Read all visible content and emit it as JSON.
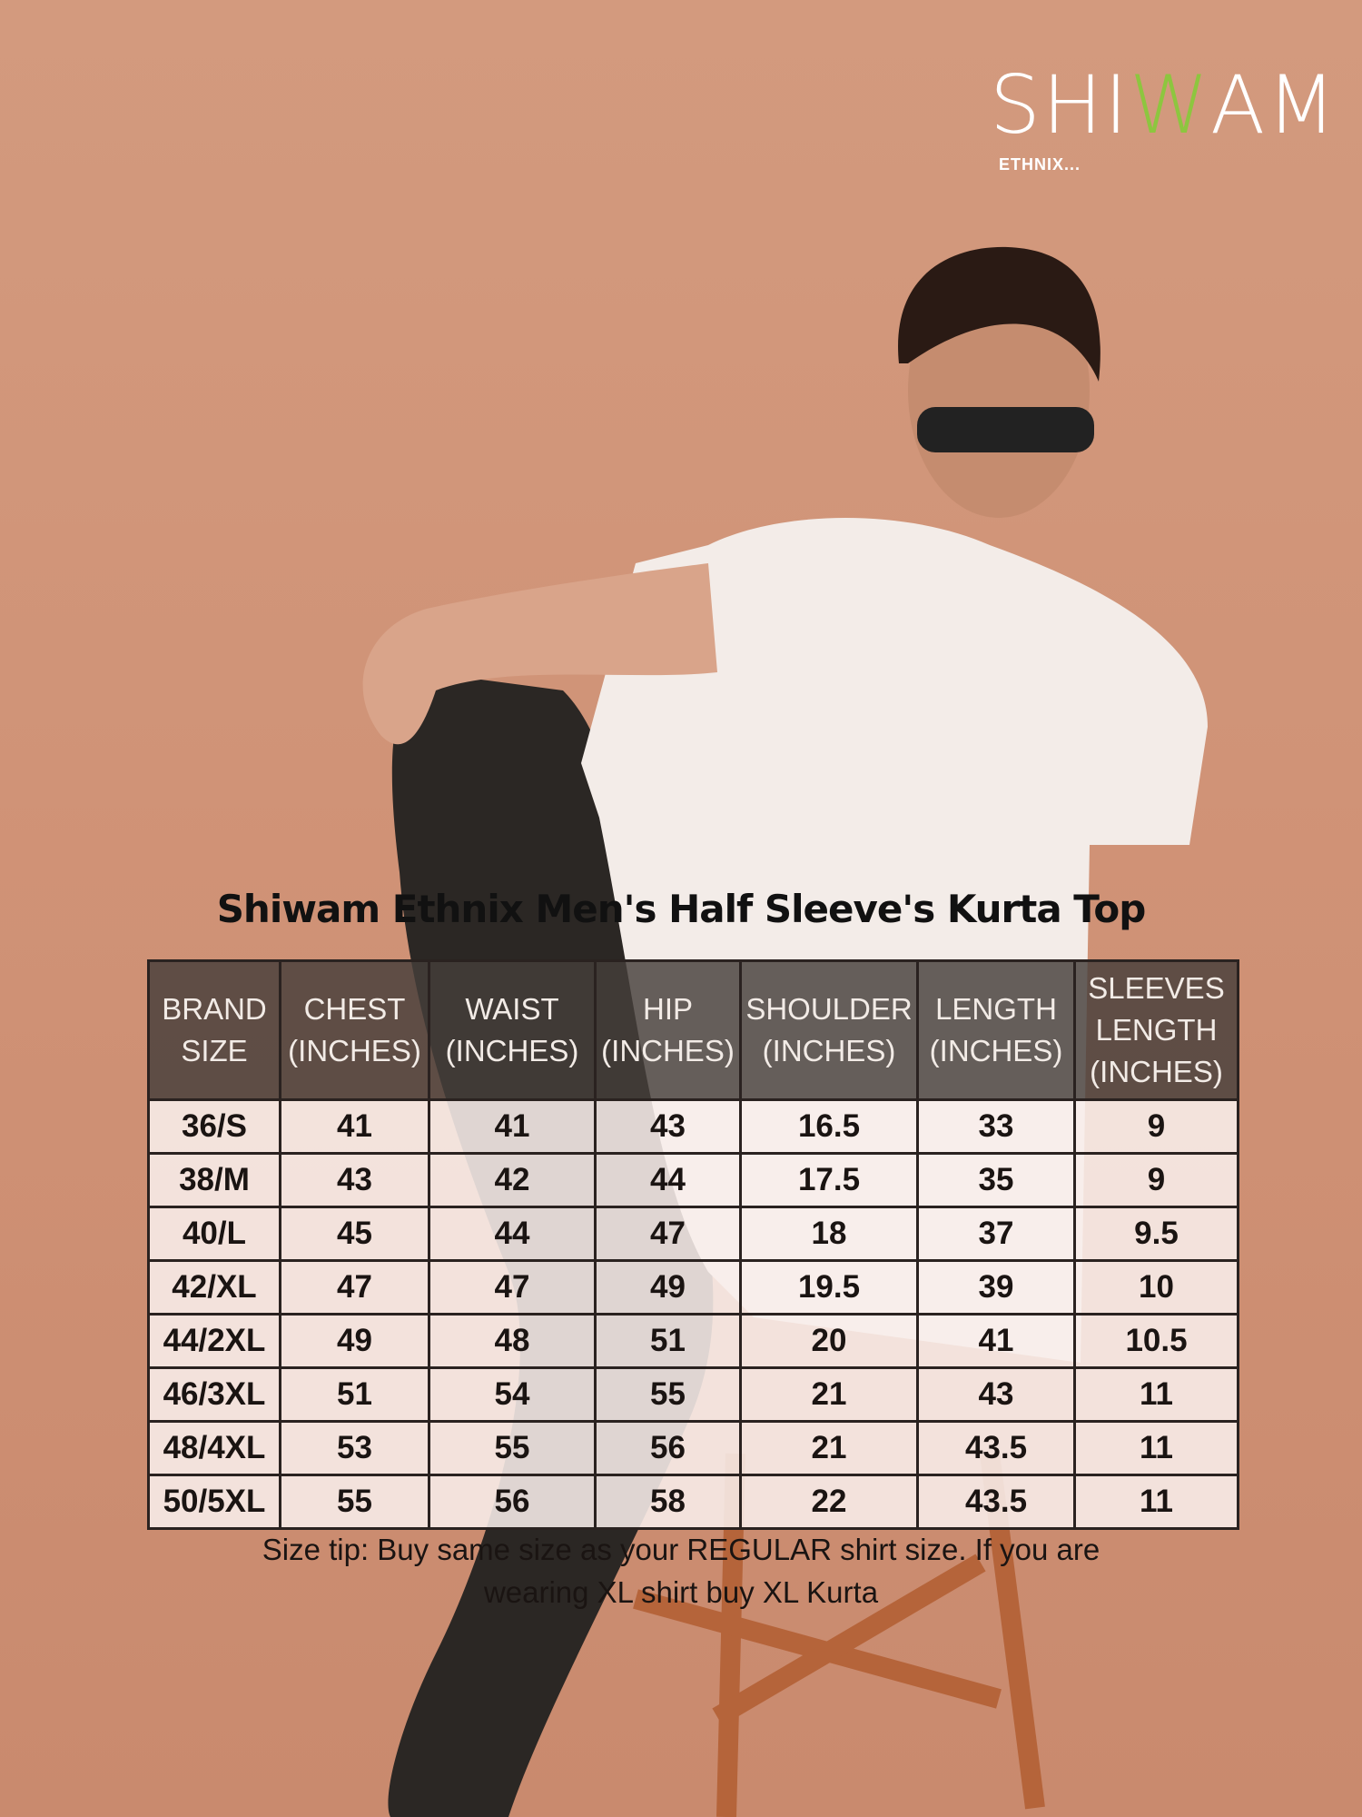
{
  "logo": {
    "brand": "SHIWAM",
    "tagline": "ETHNIX...",
    "colors": {
      "main": "#ffffff",
      "accent": "#8dc63f"
    }
  },
  "title": "Shiwam Ethnix Men's Half Sleeve's Kurta Top",
  "table": {
    "headers": [
      [
        "BRAND",
        "SIZE"
      ],
      [
        "CHEST",
        "(INCHES)"
      ],
      [
        "WAIST",
        "(INCHES)"
      ],
      [
        "HIP",
        "(INCHES)"
      ],
      [
        "SHOULDER",
        "(INCHES)"
      ],
      [
        "LENGTH",
        "(INCHES)"
      ],
      [
        "SLEEVES",
        "LENGTH",
        "(INCHES)"
      ]
    ],
    "rows": [
      [
        "36/S",
        "41",
        "41",
        "43",
        "16.5",
        "33",
        "9"
      ],
      [
        "38/M",
        "43",
        "42",
        "44",
        "17.5",
        "35",
        "9"
      ],
      [
        "40/L",
        "45",
        "44",
        "47",
        "18",
        "37",
        "9.5"
      ],
      [
        "42/XL",
        "47",
        "47",
        "49",
        "19.5",
        "39",
        "10"
      ],
      [
        "44/2XL",
        "49",
        "48",
        "51",
        "20",
        "41",
        "10.5"
      ],
      [
        "46/3XL",
        "51",
        "54",
        "55",
        "21",
        "43",
        "11"
      ],
      [
        "48/4XL",
        "53",
        "55",
        "56",
        "21",
        "43.5",
        "11"
      ],
      [
        "50/5XL",
        "55",
        "56",
        "58",
        "22",
        "43.5",
        "11"
      ]
    ]
  },
  "tip": {
    "line1": "Size tip: Buy same size as your REGULAR shirt size. If you are",
    "line2": "wearing XL shirt buy XL Kurta"
  }
}
